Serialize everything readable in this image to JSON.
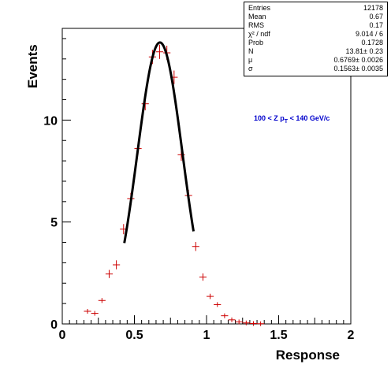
{
  "chart_data": {
    "type": "scatter",
    "xlabel": "Response",
    "ylabel": "Events",
    "xlim": [
      0,
      2
    ],
    "ylim": [
      0,
      14.5
    ],
    "x_ticks": [
      {
        "value": 0,
        "label": "0"
      },
      {
        "value": 0.5,
        "label": "0.5"
      },
      {
        "value": 1,
        "label": "1"
      },
      {
        "value": 1.5,
        "label": "1.5"
      },
      {
        "value": 2,
        "label": "2"
      }
    ],
    "y_ticks": [
      {
        "value": 0,
        "label": "0"
      },
      {
        "value": 5,
        "label": "5"
      },
      {
        "value": 10,
        "label": "10"
      }
    ],
    "annotation": {
      "prefix": "100 < Z p",
      "subscript": "T",
      "suffix": " < 140 GeV/c",
      "color": "#0000cc"
    },
    "series": [
      {
        "type": "scatter",
        "color": "#cc0000",
        "x_halfwidth": 0.025,
        "points": [
          {
            "x": 0.175,
            "y": 0.62,
            "ey": 0.08
          },
          {
            "x": 0.225,
            "y": 0.52,
            "ey": 0.08
          },
          {
            "x": 0.275,
            "y": 1.15,
            "ey": 0.12
          },
          {
            "x": 0.325,
            "y": 2.45,
            "ey": 0.2
          },
          {
            "x": 0.375,
            "y": 2.9,
            "ey": 0.22
          },
          {
            "x": 0.425,
            "y": 4.65,
            "ey": 0.25
          },
          {
            "x": 0.475,
            "y": 6.15,
            "ey": 0.28
          },
          {
            "x": 0.525,
            "y": 8.6,
            "ey": 0.3
          },
          {
            "x": 0.575,
            "y": 10.8,
            "ey": 0.32
          },
          {
            "x": 0.625,
            "y": 13.1,
            "ey": 0.35
          },
          {
            "x": 0.675,
            "y": 13.35,
            "ey": 0.35
          },
          {
            "x": 0.725,
            "y": 13.3,
            "ey": 0.35
          },
          {
            "x": 0.775,
            "y": 12.1,
            "ey": 0.33
          },
          {
            "x": 0.825,
            "y": 8.3,
            "ey": 0.3
          },
          {
            "x": 0.875,
            "y": 6.3,
            "ey": 0.28
          },
          {
            "x": 0.925,
            "y": 3.8,
            "ey": 0.22
          },
          {
            "x": 0.975,
            "y": 2.3,
            "ey": 0.18
          },
          {
            "x": 1.025,
            "y": 1.35,
            "ey": 0.13
          },
          {
            "x": 1.075,
            "y": 0.95,
            "ey": 0.1
          },
          {
            "x": 1.125,
            "y": 0.4,
            "ey": 0.06
          },
          {
            "x": 1.175,
            "y": 0.2,
            "ey": 0.04
          },
          {
            "x": 1.225,
            "y": 0.1,
            "ey": 0.03
          },
          {
            "x": 1.275,
            "y": 0.05,
            "ey": 0.02
          },
          {
            "x": 1.325,
            "y": 0.02,
            "ey": 0.01
          },
          {
            "x": 1.375,
            "y": 0.01,
            "ey": 0.01
          }
        ]
      },
      {
        "type": "line",
        "color": "#000000",
        "function": "gaussian",
        "x_range": [
          0.43,
          0.91
        ],
        "params": {
          "N": 13.81,
          "mu": 0.6769,
          "sigma": 0.1563
        }
      }
    ]
  },
  "stats": {
    "entries_label": "Entries",
    "entries_value": "12178",
    "mean_label": "Mean",
    "mean_value": "0.67",
    "rms_label": "RMS",
    "rms_value": "0.17",
    "chi2_label": "χ² / ndf",
    "chi2_value": "9.014 / 6",
    "prob_label": "Prob",
    "prob_value": "0.1728",
    "n_label": "N",
    "n_value": "13.81± 0.23",
    "mu_label": "μ",
    "mu_value": "0.6769± 0.0026",
    "sigma_label": "σ",
    "sigma_value": "0.1563± 0.0035"
  }
}
